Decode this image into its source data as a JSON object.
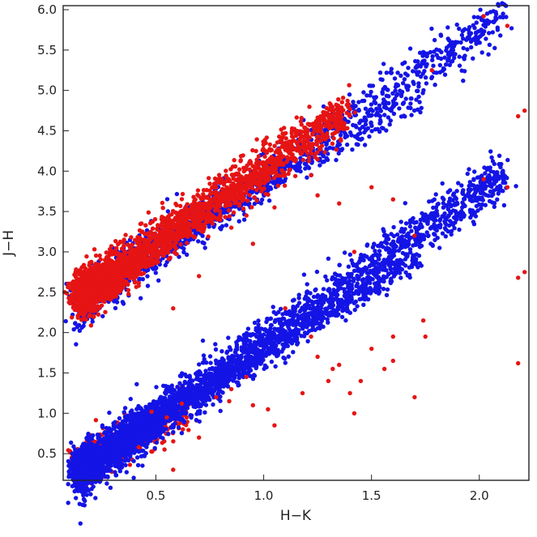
{
  "chart_data": {
    "type": "scatter",
    "title": "",
    "xlabel": "H−K",
    "ylabel": "J−H",
    "xlim": [
      0.07,
      2.23
    ],
    "ylim": [
      0.17,
      6.05
    ],
    "xticks": [
      0.5,
      1.0,
      1.5,
      2.0
    ],
    "xtick_labels": [
      "0.5",
      "1.0",
      "1.5",
      "2.0"
    ],
    "yticks": [
      0.5,
      1.0,
      1.5,
      2.0,
      2.5,
      3.0,
      3.5,
      4.0,
      4.5,
      5.0,
      5.5,
      6.0
    ],
    "ytick_labels": [
      "0.5",
      "1.0",
      "1.5",
      "2.0",
      "2.5",
      "3.0",
      "3.5",
      "4.0",
      "4.5",
      "5.0",
      "5.5",
      "6.0"
    ],
    "grid": false,
    "legend": "none",
    "series_colors": {
      "blue": "#1414e6",
      "red": "#e61414"
    },
    "series": [
      {
        "color": "blue",
        "description_of_distribution": "dense diagonal sequences",
        "bands": [
          {
            "x_start": 0.15,
            "y_start": 2.38,
            "x_end": 2.12,
            "y_end": 5.95,
            "spread": 0.14
          },
          {
            "x_start": 0.4,
            "y_start": 2.88,
            "x_end": 1.72,
            "y_end": 4.92,
            "spread": 0.08
          },
          {
            "x_start": 0.15,
            "y_start": 0.28,
            "x_end": 2.12,
            "y_end": 3.97,
            "spread": 0.14
          },
          {
            "x_start": 0.4,
            "y_start": 0.78,
            "x_end": 1.72,
            "y_end": 2.93,
            "spread": 0.08
          }
        ],
        "points": [
          [
            2.01,
            5.9
          ],
          [
            2.11,
            5.95
          ],
          [
            1.86,
            5.62
          ],
          [
            1.79,
            5.48
          ],
          [
            1.95,
            5.75
          ],
          [
            2.01,
            3.9
          ],
          [
            2.11,
            3.97
          ],
          [
            1.86,
            3.62
          ],
          [
            1.79,
            3.48
          ],
          [
            1.95,
            3.77
          ]
        ]
      },
      {
        "color": "red",
        "description_of_distribution": "dense in upper sequence, sparse outliers",
        "bands": [
          {
            "x_start": 0.15,
            "y_start": 2.45,
            "x_end": 1.4,
            "y_end": 4.78,
            "spread": 0.13
          },
          {
            "x_start": 0.15,
            "y_start": 0.35,
            "x_end": 0.65,
            "y_end": 1.05,
            "spread": 0.12
          }
        ],
        "points": [
          [
            2.02,
            5.92
          ],
          [
            2.13,
            5.8
          ],
          [
            2.18,
            4.68
          ],
          [
            2.21,
            4.75
          ],
          [
            1.78,
            5.25
          ],
          [
            2.02,
            3.9
          ],
          [
            2.13,
            3.8
          ],
          [
            2.18,
            2.68
          ],
          [
            2.21,
            2.75
          ],
          [
            2.18,
            1.62
          ],
          [
            1.1,
            4.35
          ],
          [
            1.22,
            3.95
          ],
          [
            0.92,
            3.45
          ],
          [
            0.85,
            3.3
          ],
          [
            1.35,
            3.6
          ],
          [
            1.42,
            3.0
          ],
          [
            1.5,
            3.8
          ],
          [
            1.6,
            3.65
          ],
          [
            1.7,
            3.2
          ],
          [
            1.25,
            3.7
          ],
          [
            0.42,
            2.58
          ],
          [
            0.58,
            2.3
          ],
          [
            0.7,
            2.7
          ],
          [
            0.95,
            3.1
          ],
          [
            1.05,
            3.55
          ],
          [
            1.1,
            2.3
          ],
          [
            1.22,
            1.95
          ],
          [
            0.92,
            1.45
          ],
          [
            0.85,
            1.3
          ],
          [
            1.35,
            1.6
          ],
          [
            1.42,
            1.0
          ],
          [
            1.5,
            1.8
          ],
          [
            1.6,
            1.65
          ],
          [
            1.7,
            1.2
          ],
          [
            1.25,
            1.7
          ],
          [
            0.42,
            0.58
          ],
          [
            0.58,
            0.3
          ],
          [
            0.7,
            0.7
          ],
          [
            0.95,
            1.1
          ],
          [
            1.05,
            0.85
          ],
          [
            1.32,
            1.55
          ],
          [
            1.6,
            1.95
          ],
          [
            1.45,
            1.4
          ],
          [
            1.18,
            1.25
          ],
          [
            1.02,
            1.05
          ],
          [
            0.55,
            0.95
          ],
          [
            0.48,
            1.02
          ],
          [
            0.62,
            1.12
          ],
          [
            0.78,
            1.2
          ],
          [
            0.84,
            1.15
          ],
          [
            1.75,
            1.95
          ],
          [
            1.74,
            2.15
          ],
          [
            1.3,
            1.4
          ],
          [
            1.4,
            1.25
          ],
          [
            1.56,
            1.55
          ]
        ]
      }
    ]
  }
}
